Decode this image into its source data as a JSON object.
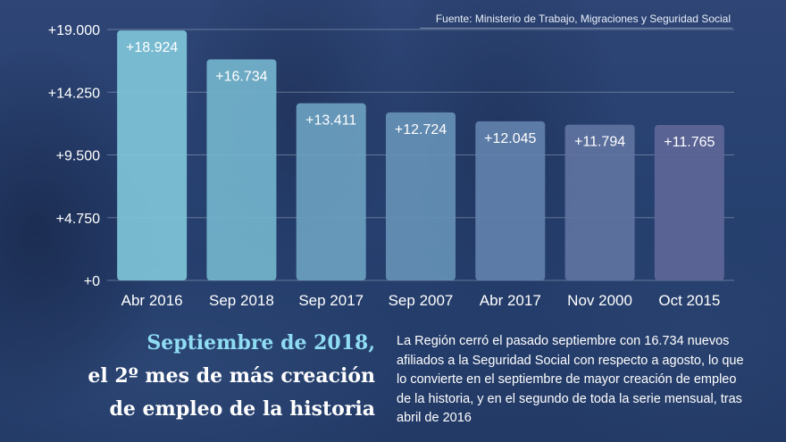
{
  "source": "Fuente: Ministerio de Trabajo, Migraciones y Seguridad Social",
  "headline": {
    "line1": "Septiembre de 2018,",
    "line2": "el 2º mes de más creación",
    "line3": "de empleo de la historia"
  },
  "body": "La Región cerró el pasado septiembre con 16.734 nuevos afiliados a la Seguridad Social con respecto a agosto, lo que lo convierte en el septiembre de mayor creación de empleo de la historia, y en el segundo de toda la serie mensual, tras abril de 2016",
  "chart_data": {
    "type": "bar",
    "categories": [
      "Abr 2016",
      "Sep 2018",
      "Sep 2017",
      "Sep 2007",
      "Abr 2017",
      "Nov 2000",
      "Oct 2015"
    ],
    "values": [
      18924,
      16734,
      13411,
      12724,
      12045,
      11794,
      11765
    ],
    "value_labels": [
      "+18.924",
      "+16.734",
      "+13.411",
      "+12.724",
      "+12.045",
      "+11.794",
      "+11.765"
    ],
    "y_ticks": [
      0,
      4750,
      9500,
      14250,
      19000
    ],
    "y_tick_labels": [
      "+0",
      "+4.750",
      "+9.500",
      "+14.250",
      "+19.000"
    ],
    "ylim": [
      0,
      19000
    ],
    "grid": true,
    "bar_colors": [
      "#7fc6d9",
      "#73b3cc",
      "#6ba0c0",
      "#6590b5",
      "#6281ab",
      "#5f73a1",
      "#5d6697"
    ]
  }
}
